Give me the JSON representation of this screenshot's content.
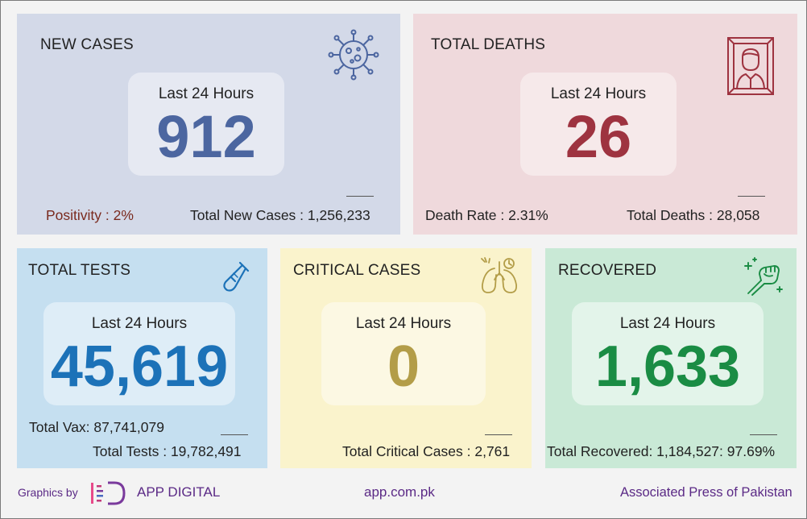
{
  "cards": {
    "new_cases": {
      "title": "NEW CASES",
      "period": "Last 24 Hours",
      "value": "912",
      "left_stat": "Positivity : 2%",
      "right_stat": "Total New Cases : 1,256,233",
      "icon": "virus-icon",
      "bg": "#d3d9e8",
      "accent": "#4c66a0"
    },
    "total_deaths": {
      "title": "TOTAL DEATHS",
      "period": "Last 24 Hours",
      "value": "26",
      "left_stat": "Death Rate : 2.31%",
      "right_stat": "Total Deaths : 28,058",
      "icon": "portrait-frame-icon",
      "bg": "#efd9dc",
      "accent": "#9e3340"
    },
    "total_tests": {
      "title": "TOTAL TESTS",
      "period": "Last 24 Hours",
      "value": "45,619",
      "left_stat": "Total Vax: 87,741,079",
      "right_stat": "Total Tests : 19,782,491",
      "icon": "test-tube-icon",
      "bg": "#c5dff0",
      "accent": "#1c72b8"
    },
    "critical_cases": {
      "title": "CRITICAL CASES",
      "period": "Last 24 Hours",
      "value": "0",
      "right_stat": "Total Critical Cases : 2,761",
      "icon": "lungs-icon",
      "bg": "#faf3cc",
      "accent": "#b39d48"
    },
    "recovered": {
      "title": "RECOVERED",
      "period": "Last 24 Hours",
      "value": "1,633",
      "right_stat": "Total Recovered: 1,184,527: 97.69%",
      "icon": "fist-up-icon",
      "bg": "#c9e9d6",
      "accent": "#1a8c44"
    }
  },
  "footer": {
    "graphics_by": "Graphics by",
    "brand": "APP DIGITAL",
    "website": "app.com.pk",
    "org": "Associated Press of Pakistan"
  }
}
